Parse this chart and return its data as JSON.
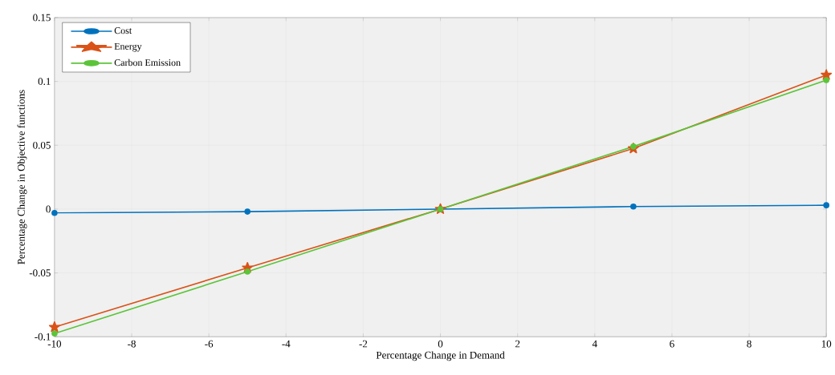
{
  "chart_data": {
    "type": "line",
    "xlabel": "Percentage Change in Demand",
    "ylabel": "Percentage Change in Objective functions",
    "x": [
      -10,
      -5,
      0,
      5,
      10
    ],
    "series": [
      {
        "name": "Cost",
        "color": "#0072bd",
        "marker": "circle",
        "values": [
          -0.003,
          -0.002,
          0,
          0.002,
          0.003
        ]
      },
      {
        "name": "Energy",
        "color": "#d95319",
        "marker": "star",
        "values": [
          -0.0925,
          -0.046,
          0,
          0.0475,
          0.105
        ]
      },
      {
        "name": "Carbon Emission",
        "color": "#5cc43a",
        "marker": "circle",
        "values": [
          -0.0975,
          -0.049,
          0,
          0.049,
          0.101
        ]
      }
    ],
    "xlim": [
      -10,
      10
    ],
    "ylim": [
      -0.1,
      0.15
    ],
    "xticks": [
      -10,
      -8,
      -6,
      -4,
      -2,
      0,
      2,
      4,
      6,
      8,
      10
    ],
    "yticks": [
      -0.1,
      -0.05,
      0,
      0.05,
      0.1,
      0.15
    ],
    "grid": true,
    "legend": "top left",
    "line_style": "solid"
  }
}
